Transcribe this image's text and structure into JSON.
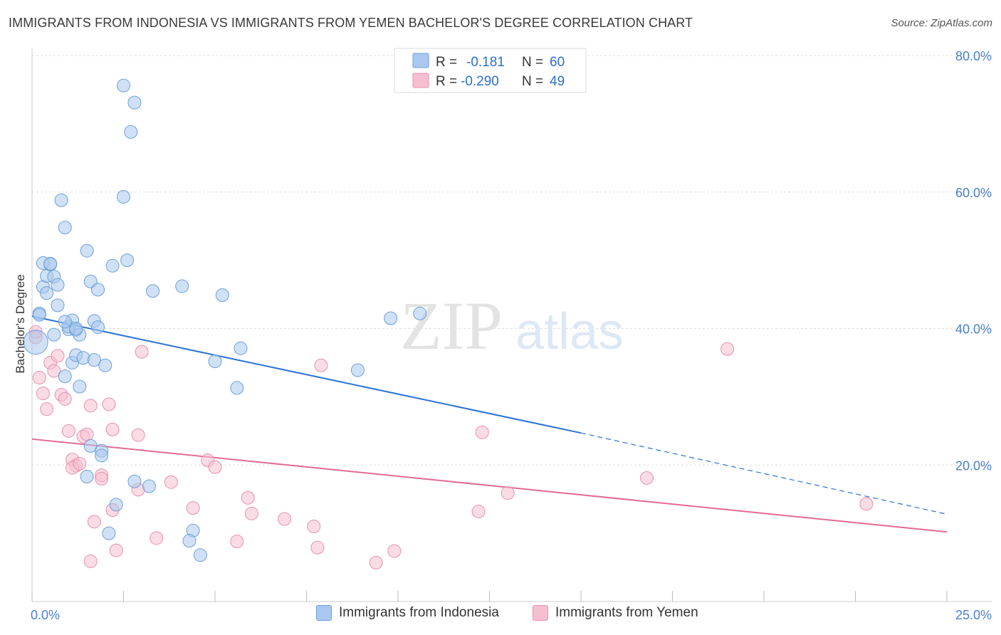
{
  "title": "IMMIGRANTS FROM INDONESIA VS IMMIGRANTS FROM YEMEN BACHELOR'S DEGREE CORRELATION CHART",
  "source": "Source: ZipAtlas.com",
  "watermark": {
    "zip": "ZIP",
    "atlas": "atlas"
  },
  "legend_box": {
    "rows": [
      {
        "r_label": "R =",
        "r_value": "-0.181",
        "n_label": "N =",
        "n_value": "60"
      },
      {
        "r_label": "R =",
        "r_value": "-0.290",
        "n_label": "N =",
        "n_value": "49"
      }
    ]
  },
  "colors": {
    "blue_fill": "#a9c8ef",
    "blue_stroke": "#6d9fd8",
    "blue_line": "#2b72d6",
    "pink_fill": "#f6bfd0",
    "pink_stroke": "#e98fae",
    "pink_line": "#e36a93",
    "tick_label": "#4a7fd0",
    "grid": "#dddddd"
  },
  "chart_data": {
    "type": "scatter",
    "title": "IMMIGRANTS FROM INDONESIA VS IMMIGRANTS FROM YEMEN BACHELOR'S DEGREE CORRELATION CHART",
    "xlabel": "",
    "ylabel": "Bachelor's Degree",
    "xlim": [
      0,
      25
    ],
    "ylim": [
      0,
      80
    ],
    "x_tick_labels": [
      "0.0%",
      "25.0%"
    ],
    "y_ticks": [
      20,
      40,
      60,
      80
    ],
    "y_tick_labels": [
      "20.0%",
      "40.0%",
      "60.0%",
      "80.0%"
    ],
    "grid": true,
    "legend_position": "bottom",
    "series": [
      {
        "name": "Immigrants from Indonesia",
        "color": "#a9c8ef",
        "r": -0.181,
        "n": 60,
        "trend": {
          "x": [
            0,
            15
          ],
          "y": [
            41.8,
            24.7
          ],
          "dashed_to": [
            25,
            12.8
          ]
        },
        "points": [
          [
            0.2,
            42.2
          ],
          [
            0.1,
            38.0
          ],
          [
            0.2,
            42.0
          ],
          [
            0.3,
            46.1
          ],
          [
            0.4,
            45.2
          ],
          [
            0.3,
            49.6
          ],
          [
            0.4,
            47.7
          ],
          [
            0.5,
            49.4
          ],
          [
            0.6,
            47.6
          ],
          [
            0.5,
            49.5
          ],
          [
            0.7,
            46.4
          ],
          [
            0.7,
            43.4
          ],
          [
            0.6,
            39.1
          ],
          [
            0.8,
            58.8
          ],
          [
            0.9,
            54.8
          ],
          [
            1.0,
            39.9
          ],
          [
            1.0,
            40.3
          ],
          [
            1.1,
            41.2
          ],
          [
            0.9,
            33.0
          ],
          [
            1.1,
            35.0
          ],
          [
            1.2,
            39.8
          ],
          [
            1.3,
            39.1
          ],
          [
            1.2,
            36.1
          ],
          [
            1.4,
            35.7
          ],
          [
            1.3,
            31.5
          ],
          [
            1.5,
            51.4
          ],
          [
            1.6,
            46.9
          ],
          [
            1.7,
            41.1
          ],
          [
            1.7,
            35.4
          ],
          [
            1.8,
            40.2
          ],
          [
            1.8,
            45.7
          ],
          [
            2.0,
            34.6
          ],
          [
            2.2,
            49.2
          ],
          [
            2.5,
            59.3
          ],
          [
            2.5,
            75.6
          ],
          [
            2.8,
            73.1
          ],
          [
            2.7,
            68.8
          ],
          [
            2.6,
            50.0
          ],
          [
            3.3,
            45.5
          ],
          [
            4.1,
            46.2
          ],
          [
            5.2,
            44.9
          ],
          [
            5.0,
            35.2
          ],
          [
            5.6,
            31.3
          ],
          [
            5.7,
            37.1
          ],
          [
            8.9,
            33.9
          ],
          [
            9.8,
            41.5
          ],
          [
            10.6,
            42.2
          ],
          [
            1.6,
            22.8
          ],
          [
            1.9,
            22.1
          ],
          [
            1.9,
            21.4
          ],
          [
            1.5,
            18.3
          ],
          [
            2.8,
            17.6
          ],
          [
            3.2,
            16.9
          ],
          [
            2.3,
            14.2
          ],
          [
            2.1,
            10.0
          ],
          [
            4.4,
            10.4
          ],
          [
            4.3,
            8.9
          ],
          [
            4.6,
            6.8
          ],
          [
            1.2,
            40.0
          ],
          [
            0.9,
            41.0
          ]
        ]
      },
      {
        "name": "Immigrants from Yemen",
        "color": "#f6bfd0",
        "r": -0.29,
        "n": 49,
        "trend": {
          "x": [
            0,
            25
          ],
          "y": [
            23.8,
            10.2
          ]
        },
        "points": [
          [
            0.1,
            39.5
          ],
          [
            0.1,
            38.7
          ],
          [
            0.2,
            32.8
          ],
          [
            0.3,
            30.5
          ],
          [
            0.4,
            28.2
          ],
          [
            0.5,
            35.0
          ],
          [
            0.6,
            33.8
          ],
          [
            0.7,
            36.0
          ],
          [
            0.8,
            30.3
          ],
          [
            0.9,
            29.7
          ],
          [
            1.0,
            25.0
          ],
          [
            1.1,
            20.8
          ],
          [
            1.2,
            19.9
          ],
          [
            1.4,
            24.2
          ],
          [
            1.5,
            24.5
          ],
          [
            1.6,
            28.7
          ],
          [
            2.1,
            28.9
          ],
          [
            2.2,
            25.2
          ],
          [
            1.9,
            18.5
          ],
          [
            1.9,
            18.0
          ],
          [
            2.9,
            24.4
          ],
          [
            3.0,
            36.6
          ],
          [
            3.4,
            9.3
          ],
          [
            2.9,
            16.4
          ],
          [
            3.8,
            17.5
          ],
          [
            4.4,
            13.7
          ],
          [
            4.8,
            20.7
          ],
          [
            5.0,
            19.7
          ],
          [
            5.6,
            8.8
          ],
          [
            5.9,
            15.2
          ],
          [
            6.0,
            12.9
          ],
          [
            6.9,
            12.1
          ],
          [
            7.7,
            11.0
          ],
          [
            7.8,
            7.9
          ],
          [
            7.9,
            34.6
          ],
          [
            9.4,
            5.7
          ],
          [
            9.9,
            7.4
          ],
          [
            12.3,
            24.8
          ],
          [
            12.2,
            13.2
          ],
          [
            13.0,
            15.9
          ],
          [
            16.8,
            18.1
          ],
          [
            19.0,
            37.0
          ],
          [
            22.8,
            14.3
          ],
          [
            2.2,
            13.4
          ],
          [
            2.3,
            7.5
          ],
          [
            1.7,
            11.7
          ],
          [
            1.6,
            5.9
          ],
          [
            1.1,
            19.6
          ],
          [
            1.3,
            20.2
          ]
        ]
      }
    ]
  },
  "bottom_legend": [
    {
      "label": "Immigrants from Indonesia"
    },
    {
      "label": "Immigrants from Yemen"
    }
  ]
}
